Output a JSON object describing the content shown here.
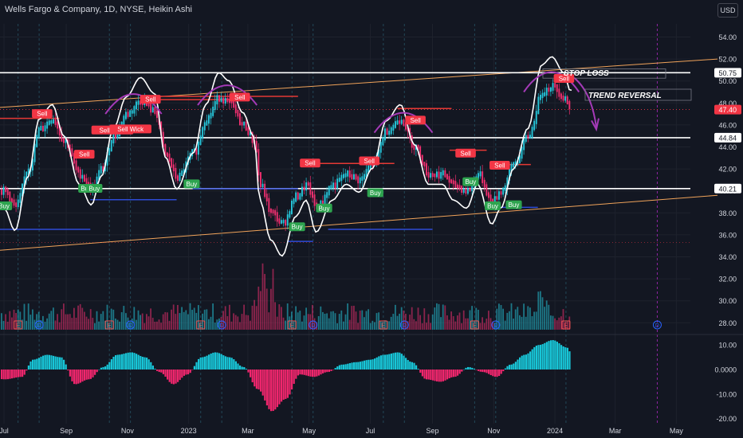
{
  "header": {
    "title": "Wells Fargo & Company, 1D, NYSE, Heikin Ashi",
    "currency_button": "USD"
  },
  "annotations": {
    "stop_loss": "STOP LOSS",
    "trend_reversal": "TREND REVERSAL"
  },
  "colors": {
    "background": "#131722",
    "up": "#26c6da",
    "down": "#ef2f6f",
    "hline": "#ffffff",
    "resistance": "#e53935",
    "support": "#2e4bd6",
    "trendline": "#f0a35a",
    "arc": "#a43ab7",
    "osc_up": "#18c6d8",
    "osc_down": "#f0266d",
    "sell_label": "#f23645",
    "buy_label": "#2ea44f"
  },
  "chart_data": [
    {
      "type": "candlestick",
      "title": "Wells Fargo & Company, 1D, NYSE, Heikin Ashi",
      "x_tick_labels": [
        "Jul",
        "Sep",
        "Nov",
        "2023",
        "Mar",
        "May",
        "Jul",
        "Sep",
        "Nov",
        "2024",
        "Mar",
        "May"
      ],
      "y_tick_labels": [
        "54.00",
        "52.00",
        "50.00",
        "48.00",
        "46.00",
        "44.00",
        "42.00",
        "40.00",
        "38.00",
        "36.00",
        "34.00",
        "32.00",
        "30.00",
        "28.00"
      ],
      "ylim": [
        28,
        55
      ],
      "price_tags": [
        "50.75",
        "47.40",
        "44.84",
        "40.21"
      ],
      "horizontal_levels": [
        50.75,
        44.84,
        40.21
      ],
      "last_price": 47.4,
      "close_path": [
        {
          "d": "2022-07-01",
          "v": 40.0
        },
        {
          "d": "2022-07-12",
          "v": 38.6
        },
        {
          "d": "2022-07-25",
          "v": 42.0
        },
        {
          "d": "2022-08-05",
          "v": 45.6
        },
        {
          "d": "2022-08-18",
          "v": 46.5
        },
        {
          "d": "2022-08-30",
          "v": 44.5
        },
        {
          "d": "2022-09-14",
          "v": 41.5
        },
        {
          "d": "2022-09-26",
          "v": 40.2
        },
        {
          "d": "2022-10-06",
          "v": 42.0
        },
        {
          "d": "2022-10-18",
          "v": 45.0
        },
        {
          "d": "2022-10-31",
          "v": 47.0
        },
        {
          "d": "2022-11-14",
          "v": 48.2
        },
        {
          "d": "2022-11-28",
          "v": 47.2
        },
        {
          "d": "2022-12-09",
          "v": 43.2
        },
        {
          "d": "2022-12-20",
          "v": 41.2
        },
        {
          "d": "2023-01-06",
          "v": 43.5
        },
        {
          "d": "2023-01-18",
          "v": 46.5
        },
        {
          "d": "2023-01-31",
          "v": 48.5
        },
        {
          "d": "2023-02-10",
          "v": 48.0
        },
        {
          "d": "2023-02-24",
          "v": 46.0
        },
        {
          "d": "2023-03-07",
          "v": 44.5
        },
        {
          "d": "2023-03-13",
          "v": 40.5
        },
        {
          "d": "2023-03-24",
          "v": 38.0
        },
        {
          "d": "2023-04-04",
          "v": 37.0
        },
        {
          "d": "2023-04-18",
          "v": 39.5
        },
        {
          "d": "2023-04-28",
          "v": 40.5
        },
        {
          "d": "2023-05-08",
          "v": 38.5
        },
        {
          "d": "2023-05-24",
          "v": 40.5
        },
        {
          "d": "2023-06-07",
          "v": 41.5
        },
        {
          "d": "2023-06-20",
          "v": 41.0
        },
        {
          "d": "2023-07-03",
          "v": 42.5
        },
        {
          "d": "2023-07-17",
          "v": 45.5
        },
        {
          "d": "2023-07-31",
          "v": 46.5
        },
        {
          "d": "2023-08-14",
          "v": 44.0
        },
        {
          "d": "2023-08-28",
          "v": 41.5
        },
        {
          "d": "2023-09-11",
          "v": 41.5
        },
        {
          "d": "2023-09-22",
          "v": 40.5
        },
        {
          "d": "2023-10-05",
          "v": 40.0
        },
        {
          "d": "2023-10-16",
          "v": 41.5
        },
        {
          "d": "2023-10-30",
          "v": 39.0
        },
        {
          "d": "2023-11-08",
          "v": 40.0
        },
        {
          "d": "2023-11-21",
          "v": 42.5
        },
        {
          "d": "2023-12-05",
          "v": 45.0
        },
        {
          "d": "2023-12-19",
          "v": 49.0
        },
        {
          "d": "2023-12-29",
          "v": 49.5
        },
        {
          "d": "2024-01-10",
          "v": 48.5
        },
        {
          "d": "2024-01-16",
          "v": 47.4
        }
      ],
      "buy_sell_labels": [
        {
          "d": "2022-07-01",
          "t": "Buy",
          "p": 38.6
        },
        {
          "d": "2022-08-08",
          "t": "Sell",
          "p": 47.0
        },
        {
          "d": "2022-09-19",
          "t": "Sell",
          "p": 43.3
        },
        {
          "d": "2022-09-21",
          "t": "Buy",
          "p": 40.2
        },
        {
          "d": "2022-09-29",
          "t": "Buy",
          "p": 40.2
        },
        {
          "d": "2022-10-17",
          "t": "Sell Wick",
          "p": 45.5
        },
        {
          "d": "2022-11-04",
          "t": "Sell Wick",
          "p": 45.6
        },
        {
          "d": "2022-11-24",
          "t": "Sell",
          "p": 48.3
        },
        {
          "d": "2023-01-04",
          "t": "Buy",
          "p": 40.6
        },
        {
          "d": "2023-02-21",
          "t": "Sell",
          "p": 48.5
        },
        {
          "d": "2023-04-19",
          "t": "Buy",
          "p": 36.7
        },
        {
          "d": "2023-05-02",
          "t": "Sell",
          "p": 42.5
        },
        {
          "d": "2023-05-16",
          "t": "Buy",
          "p": 38.4
        },
        {
          "d": "2023-06-30",
          "t": "Sell",
          "p": 42.7
        },
        {
          "d": "2023-07-06",
          "t": "Buy",
          "p": 39.8
        },
        {
          "d": "2023-08-15",
          "t": "Sell",
          "p": 46.4
        },
        {
          "d": "2023-10-04",
          "t": "Sell",
          "p": 43.4
        },
        {
          "d": "2023-10-09",
          "t": "Buy",
          "p": 40.8
        },
        {
          "d": "2023-10-31",
          "t": "Buy",
          "p": 38.6
        },
        {
          "d": "2023-11-07",
          "t": "Sell",
          "p": 42.3
        },
        {
          "d": "2023-11-21",
          "t": "Buy",
          "p": 38.7
        },
        {
          "d": "2024-01-10",
          "t": "Sell",
          "p": 50.2
        }
      ],
      "earnings_markers": [
        "2022-07-15",
        "2022-08-05",
        "2022-10-14",
        "2022-11-04",
        "2023-01-13",
        "2023-02-03",
        "2023-04-14",
        "2023-05-05",
        "2023-07-14",
        "2023-08-04",
        "2023-10-13",
        "2023-11-03",
        "2024-01-12",
        "2024-04-12"
      ]
    },
    {
      "type": "area",
      "name": "oscillator",
      "y_tick_labels": [
        "10.00",
        "0.0000",
        "-10.00",
        "-20.00"
      ],
      "ylim": [
        -22,
        13
      ],
      "values": [
        {
          "d": "2022-07-01",
          "v": -4
        },
        {
          "d": "2022-07-18",
          "v": -3
        },
        {
          "d": "2022-07-29",
          "v": 4
        },
        {
          "d": "2022-08-12",
          "v": 6
        },
        {
          "d": "2022-08-26",
          "v": 5
        },
        {
          "d": "2022-09-09",
          "v": -6
        },
        {
          "d": "2022-09-23",
          "v": -4
        },
        {
          "d": "2022-10-07",
          "v": 1
        },
        {
          "d": "2022-10-21",
          "v": 6
        },
        {
          "d": "2022-11-04",
          "v": 7
        },
        {
          "d": "2022-11-18",
          "v": 5
        },
        {
          "d": "2022-12-02",
          "v": -1
        },
        {
          "d": "2022-12-16",
          "v": -6
        },
        {
          "d": "2022-12-30",
          "v": -2
        },
        {
          "d": "2023-01-13",
          "v": 5
        },
        {
          "d": "2023-01-27",
          "v": 7
        },
        {
          "d": "2023-02-10",
          "v": 5
        },
        {
          "d": "2023-02-24",
          "v": 1
        },
        {
          "d": "2023-03-10",
          "v": -8
        },
        {
          "d": "2023-03-24",
          "v": -17
        },
        {
          "d": "2023-04-07",
          "v": -12
        },
        {
          "d": "2023-04-21",
          "v": -2
        },
        {
          "d": "2023-05-05",
          "v": -3
        },
        {
          "d": "2023-05-19",
          "v": -1
        },
        {
          "d": "2023-06-02",
          "v": 2
        },
        {
          "d": "2023-06-16",
          "v": 3
        },
        {
          "d": "2023-06-30",
          "v": 4
        },
        {
          "d": "2023-07-14",
          "v": 6
        },
        {
          "d": "2023-07-28",
          "v": 7
        },
        {
          "d": "2023-08-11",
          "v": 3
        },
        {
          "d": "2023-08-25",
          "v": -4
        },
        {
          "d": "2023-09-08",
          "v": -5
        },
        {
          "d": "2023-09-22",
          "v": -3
        },
        {
          "d": "2023-10-06",
          "v": 1
        },
        {
          "d": "2023-10-20",
          "v": -1
        },
        {
          "d": "2023-11-03",
          "v": -3
        },
        {
          "d": "2023-11-17",
          "v": 2
        },
        {
          "d": "2023-12-01",
          "v": 6
        },
        {
          "d": "2023-12-15",
          "v": 10
        },
        {
          "d": "2023-12-29",
          "v": 12
        },
        {
          "d": "2024-01-12",
          "v": 9
        },
        {
          "d": "2024-01-16",
          "v": 7
        }
      ]
    }
  ]
}
